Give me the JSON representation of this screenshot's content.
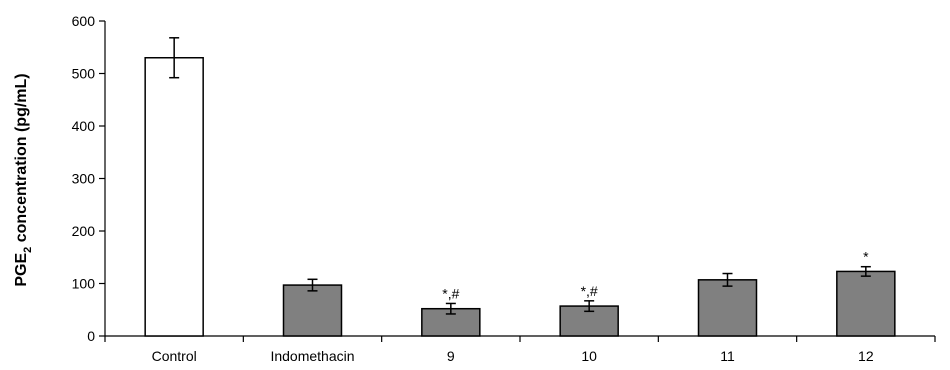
{
  "chart_data": {
    "type": "bar",
    "categories": [
      "Control",
      "Indomethacin",
      "9",
      "10",
      "11",
      "12"
    ],
    "values": [
      530,
      97,
      52,
      57,
      107,
      123
    ],
    "errors": [
      38,
      11,
      10,
      10,
      12,
      9
    ],
    "bar_colors": [
      "#ffffff",
      "#808080",
      "#808080",
      "#808080",
      "#808080",
      "#808080"
    ],
    "annotations": [
      "",
      "",
      "*,#",
      "*,#",
      "",
      "*"
    ],
    "ylabel_main": "PGE",
    "ylabel_sub": "2",
    "ylabel_rest": " concentration (pg/mL)",
    "ylim": [
      0,
      600
    ],
    "yticks": [
      0,
      100,
      200,
      300,
      400,
      500,
      600
    ],
    "grid": false,
    "legend": "none"
  }
}
